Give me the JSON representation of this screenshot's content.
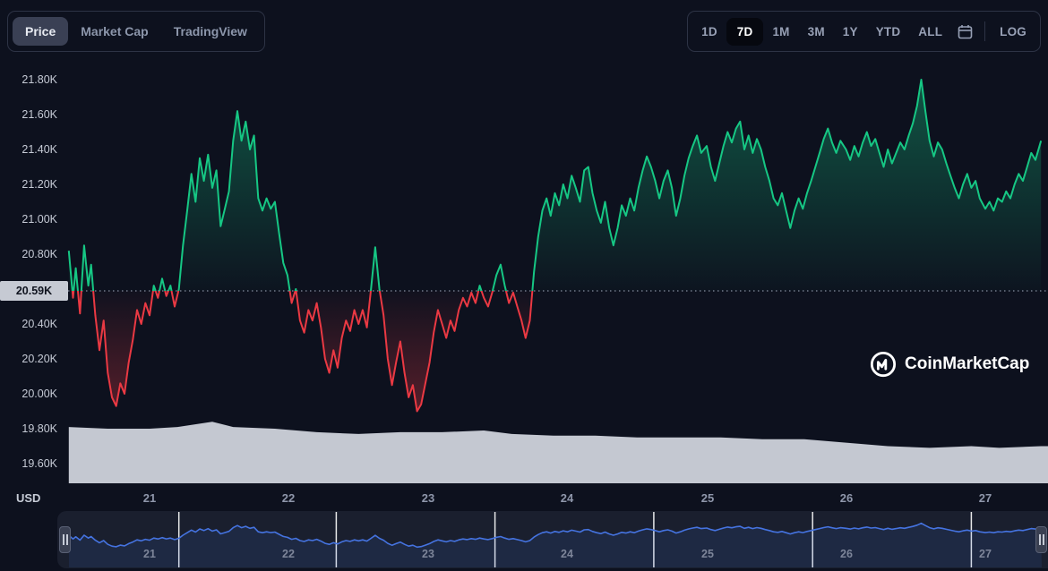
{
  "theme": {
    "page_bg": "#0d111e",
    "panel_border": "#2d3345",
    "green": "#16c784",
    "red": "#ea3943",
    "navigator_line": "#4573e0",
    "volume_fill": "#d4d8e1",
    "price_tag_bg": "#c6cad3",
    "price_tag_text": "#10141f"
  },
  "top_left_toolbar": {
    "items": [
      {
        "label": "Price",
        "selected": true
      },
      {
        "label": "Market Cap",
        "selected": false
      },
      {
        "label": "TradingView",
        "selected": false
      }
    ]
  },
  "top_right_toolbar": {
    "ranges": [
      {
        "label": "1D",
        "selected": false
      },
      {
        "label": "7D",
        "selected": true
      },
      {
        "label": "1M",
        "selected": false
      },
      {
        "label": "3M",
        "selected": false
      },
      {
        "label": "1Y",
        "selected": false
      },
      {
        "label": "YTD",
        "selected": false
      },
      {
        "label": "ALL",
        "selected": false
      }
    ],
    "calendar_icon": "calendar-icon",
    "scale_toggle": "LOG"
  },
  "price_axis": {
    "labels": [
      "21.80K",
      "21.60K",
      "21.40K",
      "21.20K",
      "21.00K",
      "20.80K",
      "20.40K",
      "20.20K",
      "20.00K",
      "19.80K",
      "19.60K"
    ],
    "unit": "USD"
  },
  "current_price_label": "20.59K",
  "date_axis": {
    "labels": [
      "21",
      "22",
      "23",
      "24",
      "25",
      "26",
      "27"
    ]
  },
  "navigator": {
    "labels": [
      "21",
      "22",
      "23",
      "24",
      "25",
      "26",
      "27"
    ],
    "left_handle": "drag-handle",
    "right_handle": "drag-handle"
  },
  "brand": {
    "name": "CoinMarketCap"
  },
  "chart_data": {
    "type": "line",
    "title": "",
    "unit": "USD",
    "x_ticks": [
      "21",
      "22",
      "23",
      "24",
      "25",
      "26",
      "27"
    ],
    "x_tick_values": [
      21,
      22,
      23,
      24,
      25,
      26,
      27
    ],
    "y_ticks": [
      "21.80K",
      "21.60K",
      "21.40K",
      "21.20K",
      "21.00K",
      "20.80K",
      "20.40K",
      "20.20K",
      "20.00K",
      "19.80K",
      "19.60K"
    ],
    "y_tick_values": [
      21.8,
      21.6,
      21.4,
      21.2,
      21.0,
      20.8,
      20.4,
      20.2,
      20.0,
      19.8,
      19.6
    ],
    "x_range": [
      20.42,
      27.4
    ],
    "ylim": [
      19.5,
      21.9
    ],
    "baseline_value": 20.59,
    "up_color": "#16c784",
    "down_color": "#ea3943",
    "navigator_gridlines_t": [
      21.21,
      22.34,
      23.48,
      24.62,
      25.76,
      26.9
    ],
    "series": [
      {
        "name": "price_usd_thousands",
        "points": [
          [
            20.42,
            20.82
          ],
          [
            20.45,
            20.55
          ],
          [
            20.47,
            20.72
          ],
          [
            20.5,
            20.46
          ],
          [
            20.53,
            20.85
          ],
          [
            20.56,
            20.62
          ],
          [
            20.58,
            20.74
          ],
          [
            20.61,
            20.45
          ],
          [
            20.64,
            20.25
          ],
          [
            20.67,
            20.42
          ],
          [
            20.7,
            20.12
          ],
          [
            20.73,
            19.98
          ],
          [
            20.76,
            19.93
          ],
          [
            20.79,
            20.06
          ],
          [
            20.82,
            20.0
          ],
          [
            20.85,
            20.18
          ],
          [
            20.88,
            20.31
          ],
          [
            20.91,
            20.48
          ],
          [
            20.94,
            20.4
          ],
          [
            20.97,
            20.52
          ],
          [
            21.0,
            20.45
          ],
          [
            21.03,
            20.62
          ],
          [
            21.06,
            20.55
          ],
          [
            21.09,
            20.66
          ],
          [
            21.12,
            20.56
          ],
          [
            21.15,
            20.62
          ],
          [
            21.18,
            20.5
          ],
          [
            21.21,
            20.6
          ],
          [
            21.24,
            20.85
          ],
          [
            21.27,
            21.05
          ],
          [
            21.3,
            21.26
          ],
          [
            21.33,
            21.1
          ],
          [
            21.36,
            21.35
          ],
          [
            21.39,
            21.22
          ],
          [
            21.42,
            21.37
          ],
          [
            21.45,
            21.18
          ],
          [
            21.48,
            21.28
          ],
          [
            21.51,
            20.96
          ],
          [
            21.54,
            21.06
          ],
          [
            21.57,
            21.16
          ],
          [
            21.6,
            21.45
          ],
          [
            21.63,
            21.62
          ],
          [
            21.66,
            21.45
          ],
          [
            21.69,
            21.56
          ],
          [
            21.72,
            21.4
          ],
          [
            21.75,
            21.48
          ],
          [
            21.78,
            21.12
          ],
          [
            21.81,
            21.05
          ],
          [
            21.84,
            21.12
          ],
          [
            21.87,
            21.06
          ],
          [
            21.9,
            21.1
          ],
          [
            21.93,
            20.92
          ],
          [
            21.96,
            20.75
          ],
          [
            21.99,
            20.68
          ],
          [
            22.02,
            20.52
          ],
          [
            22.05,
            20.6
          ],
          [
            22.08,
            20.42
          ],
          [
            22.11,
            20.35
          ],
          [
            22.14,
            20.48
          ],
          [
            22.17,
            20.42
          ],
          [
            22.2,
            20.52
          ],
          [
            22.23,
            20.38
          ],
          [
            22.26,
            20.2
          ],
          [
            22.29,
            20.12
          ],
          [
            22.32,
            20.25
          ],
          [
            22.35,
            20.15
          ],
          [
            22.38,
            20.32
          ],
          [
            22.41,
            20.42
          ],
          [
            22.44,
            20.36
          ],
          [
            22.47,
            20.48
          ],
          [
            22.5,
            20.4
          ],
          [
            22.53,
            20.48
          ],
          [
            22.56,
            20.38
          ],
          [
            22.59,
            20.6
          ],
          [
            22.62,
            20.84
          ],
          [
            22.65,
            20.6
          ],
          [
            22.68,
            20.45
          ],
          [
            22.71,
            20.2
          ],
          [
            22.74,
            20.05
          ],
          [
            22.77,
            20.18
          ],
          [
            22.8,
            20.3
          ],
          [
            22.83,
            20.12
          ],
          [
            22.86,
            19.98
          ],
          [
            22.89,
            20.05
          ],
          [
            22.92,
            19.9
          ],
          [
            22.95,
            19.94
          ],
          [
            22.98,
            20.06
          ],
          [
            23.01,
            20.18
          ],
          [
            23.04,
            20.35
          ],
          [
            23.07,
            20.48
          ],
          [
            23.1,
            20.4
          ],
          [
            23.13,
            20.32
          ],
          [
            23.16,
            20.42
          ],
          [
            23.19,
            20.36
          ],
          [
            23.22,
            20.48
          ],
          [
            23.25,
            20.55
          ],
          [
            23.28,
            20.5
          ],
          [
            23.31,
            20.58
          ],
          [
            23.34,
            20.52
          ],
          [
            23.37,
            20.62
          ],
          [
            23.4,
            20.55
          ],
          [
            23.43,
            20.5
          ],
          [
            23.46,
            20.58
          ],
          [
            23.49,
            20.68
          ],
          [
            23.52,
            20.74
          ],
          [
            23.55,
            20.62
          ],
          [
            23.58,
            20.52
          ],
          [
            23.61,
            20.58
          ],
          [
            23.64,
            20.5
          ],
          [
            23.67,
            20.42
          ],
          [
            23.7,
            20.32
          ],
          [
            23.73,
            20.42
          ],
          [
            23.76,
            20.7
          ],
          [
            23.79,
            20.9
          ],
          [
            23.82,
            21.05
          ],
          [
            23.85,
            21.12
          ],
          [
            23.88,
            21.02
          ],
          [
            23.91,
            21.15
          ],
          [
            23.94,
            21.08
          ],
          [
            23.97,
            21.2
          ],
          [
            24.0,
            21.12
          ],
          [
            24.03,
            21.25
          ],
          [
            24.06,
            21.18
          ],
          [
            24.09,
            21.1
          ],
          [
            24.12,
            21.28
          ],
          [
            24.15,
            21.3
          ],
          [
            24.18,
            21.15
          ],
          [
            24.21,
            21.05
          ],
          [
            24.24,
            20.98
          ],
          [
            24.27,
            21.1
          ],
          [
            24.3,
            20.95
          ],
          [
            24.33,
            20.85
          ],
          [
            24.36,
            20.95
          ],
          [
            24.39,
            21.08
          ],
          [
            24.42,
            21.02
          ],
          [
            24.45,
            21.12
          ],
          [
            24.48,
            21.05
          ],
          [
            24.51,
            21.18
          ],
          [
            24.54,
            21.28
          ],
          [
            24.57,
            21.36
          ],
          [
            24.6,
            21.3
          ],
          [
            24.63,
            21.22
          ],
          [
            24.66,
            21.12
          ],
          [
            24.69,
            21.22
          ],
          [
            24.72,
            21.28
          ],
          [
            24.75,
            21.18
          ],
          [
            24.78,
            21.02
          ],
          [
            24.81,
            21.12
          ],
          [
            24.84,
            21.25
          ],
          [
            24.87,
            21.35
          ],
          [
            24.9,
            21.42
          ],
          [
            24.93,
            21.48
          ],
          [
            24.96,
            21.38
          ],
          [
            25.0,
            21.42
          ],
          [
            25.03,
            21.3
          ],
          [
            25.06,
            21.22
          ],
          [
            25.09,
            21.32
          ],
          [
            25.12,
            21.42
          ],
          [
            25.15,
            21.5
          ],
          [
            25.18,
            21.44
          ],
          [
            25.21,
            21.52
          ],
          [
            25.24,
            21.56
          ],
          [
            25.27,
            21.4
          ],
          [
            25.3,
            21.48
          ],
          [
            25.33,
            21.38
          ],
          [
            25.36,
            21.46
          ],
          [
            25.39,
            21.4
          ],
          [
            25.42,
            21.3
          ],
          [
            25.45,
            21.22
          ],
          [
            25.48,
            21.12
          ],
          [
            25.51,
            21.08
          ],
          [
            25.54,
            21.15
          ],
          [
            25.57,
            21.05
          ],
          [
            25.6,
            20.95
          ],
          [
            25.63,
            21.05
          ],
          [
            25.66,
            21.12
          ],
          [
            25.69,
            21.06
          ],
          [
            25.72,
            21.15
          ],
          [
            25.75,
            21.22
          ],
          [
            25.78,
            21.3
          ],
          [
            25.81,
            21.38
          ],
          [
            25.84,
            21.46
          ],
          [
            25.87,
            21.52
          ],
          [
            25.9,
            21.44
          ],
          [
            25.93,
            21.38
          ],
          [
            25.96,
            21.45
          ],
          [
            26.0,
            21.4
          ],
          [
            26.03,
            21.34
          ],
          [
            26.06,
            21.42
          ],
          [
            26.09,
            21.36
          ],
          [
            26.12,
            21.44
          ],
          [
            26.15,
            21.5
          ],
          [
            26.18,
            21.42
          ],
          [
            26.21,
            21.46
          ],
          [
            26.24,
            21.38
          ],
          [
            26.27,
            21.3
          ],
          [
            26.3,
            21.4
          ],
          [
            26.33,
            21.32
          ],
          [
            26.36,
            21.38
          ],
          [
            26.39,
            21.44
          ],
          [
            26.42,
            21.4
          ],
          [
            26.45,
            21.48
          ],
          [
            26.48,
            21.55
          ],
          [
            26.51,
            21.65
          ],
          [
            26.54,
            21.8
          ],
          [
            26.57,
            21.62
          ],
          [
            26.6,
            21.45
          ],
          [
            26.63,
            21.36
          ],
          [
            26.66,
            21.44
          ],
          [
            26.69,
            21.4
          ],
          [
            26.72,
            21.32
          ],
          [
            26.75,
            21.25
          ],
          [
            26.78,
            21.18
          ],
          [
            26.81,
            21.12
          ],
          [
            26.84,
            21.2
          ],
          [
            26.87,
            21.26
          ],
          [
            26.9,
            21.18
          ],
          [
            26.93,
            21.22
          ],
          [
            26.96,
            21.12
          ],
          [
            27.0,
            21.06
          ],
          [
            27.03,
            21.1
          ],
          [
            27.06,
            21.05
          ],
          [
            27.09,
            21.12
          ],
          [
            27.12,
            21.1
          ],
          [
            27.15,
            21.16
          ],
          [
            27.18,
            21.12
          ],
          [
            27.21,
            21.2
          ],
          [
            27.24,
            21.26
          ],
          [
            27.27,
            21.22
          ],
          [
            27.3,
            21.3
          ],
          [
            27.33,
            21.38
          ],
          [
            27.36,
            21.34
          ],
          [
            27.4,
            21.45
          ]
        ]
      }
    ],
    "volume_profile": [
      [
        20.42,
        19.81
      ],
      [
        20.7,
        19.8
      ],
      [
        21.0,
        19.8
      ],
      [
        21.2,
        19.81
      ],
      [
        21.45,
        19.84
      ],
      [
        21.6,
        19.81
      ],
      [
        21.9,
        19.8
      ],
      [
        22.2,
        19.78
      ],
      [
        22.5,
        19.77
      ],
      [
        22.8,
        19.78
      ],
      [
        23.1,
        19.78
      ],
      [
        23.4,
        19.79
      ],
      [
        23.6,
        19.77
      ],
      [
        23.9,
        19.76
      ],
      [
        24.2,
        19.76
      ],
      [
        24.5,
        19.75
      ],
      [
        24.8,
        19.75
      ],
      [
        25.1,
        19.75
      ],
      [
        25.4,
        19.74
      ],
      [
        25.7,
        19.74
      ],
      [
        26.0,
        19.72
      ],
      [
        26.3,
        19.7
      ],
      [
        26.6,
        19.69
      ],
      [
        26.9,
        19.7
      ],
      [
        27.1,
        19.69
      ],
      [
        27.4,
        19.7
      ]
    ]
  }
}
